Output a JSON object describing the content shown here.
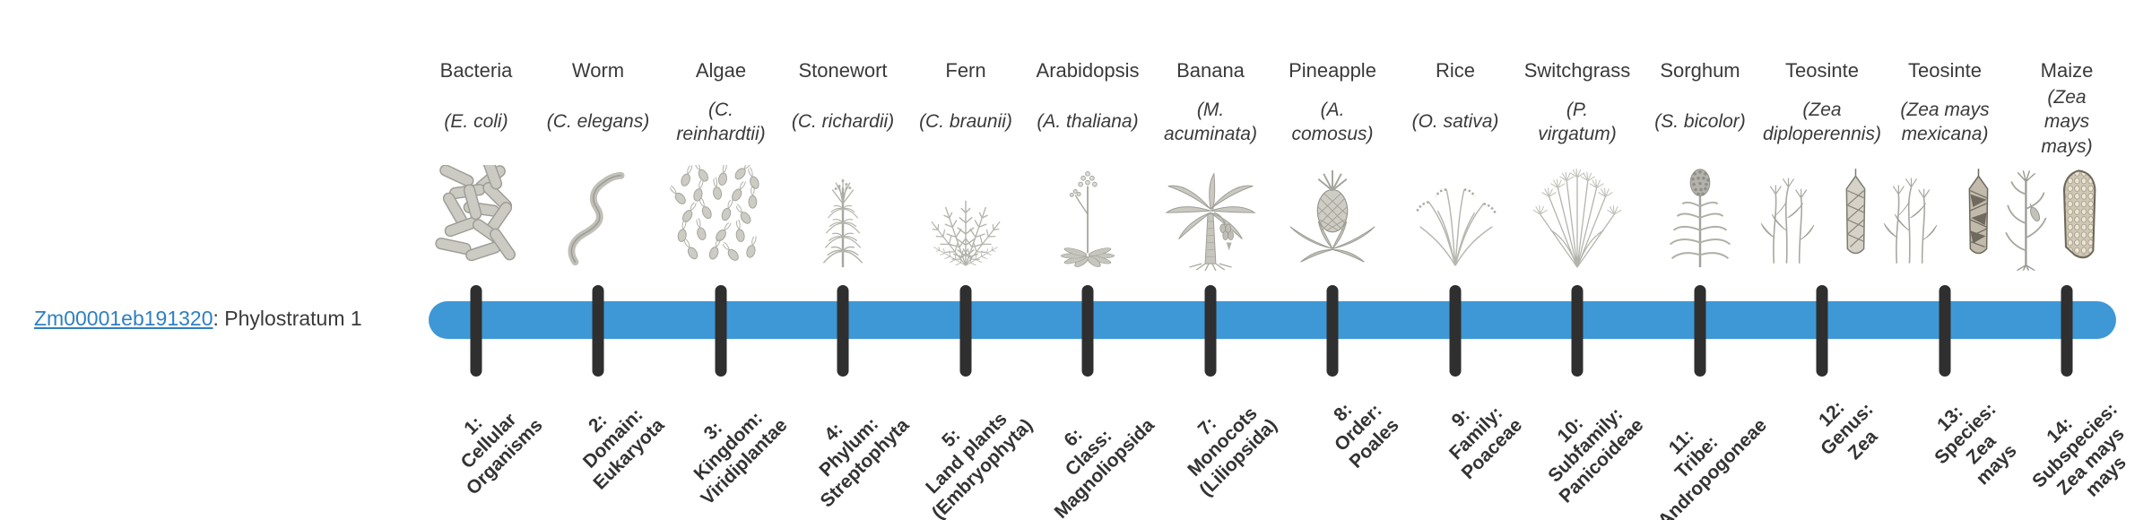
{
  "page": {
    "background": "#ffffff"
  },
  "gene": {
    "id": "Zm00001eb191320",
    "stratum_text": ": Phylostratum 1",
    "link_color": "#2f7fc1"
  },
  "timeline": {
    "bar_color": "#3e98d5",
    "tick_color": "#2f2f2f",
    "ink_color": "#3a3a3a"
  },
  "chart_data": {
    "type": "table",
    "title": "Zm00001eb191320: Phylostratum 1",
    "legend_position": "none",
    "axis": "phylostrata 1-14 left-to-right on a horizontal timeline bar",
    "strata": [
      {
        "number": 1,
        "rank": "Cellular Organisms",
        "taxon": "Cellular Organisms",
        "organism": "Bacteria",
        "species": "E. coli"
      },
      {
        "number": 2,
        "rank": "Domain",
        "taxon": "Eukaryota",
        "organism": "Worm",
        "species": "C. elegans"
      },
      {
        "number": 3,
        "rank": "Kingdom",
        "taxon": "Viridiplantae",
        "organism": "Algae",
        "species": "C. reinhardtii"
      },
      {
        "number": 4,
        "rank": "Phylum",
        "taxon": "Streptophyta",
        "organism": "Stonewort",
        "species": "C. richardii"
      },
      {
        "number": 5,
        "rank": "Land plants",
        "taxon": "Embryophyta",
        "organism": "Fern",
        "species": "C. braunii"
      },
      {
        "number": 6,
        "rank": "Class",
        "taxon": "Magnoliopsida",
        "organism": "Arabidopsis",
        "species": "A. thaliana"
      },
      {
        "number": 7,
        "rank": "Monocots",
        "taxon": "Liliopsida",
        "organism": "Banana",
        "species": "M. acuminata"
      },
      {
        "number": 8,
        "rank": "Order",
        "taxon": "Poales",
        "organism": "Pineapple",
        "species": "A. comosus"
      },
      {
        "number": 9,
        "rank": "Family",
        "taxon": "Poaceae",
        "organism": "Rice",
        "species": "O. sativa"
      },
      {
        "number": 10,
        "rank": "Subfamily",
        "taxon": "Panicoideae",
        "organism": "Switchgrass",
        "species": "P. virgatum"
      },
      {
        "number": 11,
        "rank": "Tribe",
        "taxon": "Andropogoneae",
        "organism": "Sorghum",
        "species": "S. bicolor"
      },
      {
        "number": 12,
        "rank": "Genus",
        "taxon": "Zea",
        "organism": "Teosinte",
        "species": "Zea diploperennis"
      },
      {
        "number": 13,
        "rank": "Species",
        "taxon": "Zea mays",
        "organism": "Teosinte",
        "species": "Zea mays mexicana"
      },
      {
        "number": 14,
        "rank": "Subspecies",
        "taxon": "Zea mays mays",
        "organism": "Maize",
        "species": "Zea mays mays"
      }
    ]
  },
  "organisms": [
    {
      "common": "Bacteria",
      "scientific": "(E. coli)",
      "icon": "bacteria-icon",
      "stratum": "1:\nCellular\nOrganisms"
    },
    {
      "common": "Worm",
      "scientific": "(C. elegans)",
      "icon": "worm-icon",
      "stratum": "2:\nDomain:\nEukaryota"
    },
    {
      "common": "Algae",
      "scientific": "(C.\nreinhardtii)",
      "icon": "algae-icon",
      "stratum": "3:\nKingdom:\nViridiplantae"
    },
    {
      "common": "Stonewort",
      "scientific": "(C. richardii)",
      "icon": "stonewort-icon",
      "stratum": "4:\nPhylum:\nStreptophyta"
    },
    {
      "common": "Fern",
      "scientific": "(C. braunii)",
      "icon": "fern-icon",
      "stratum": "5:\nLand plants\n(Embryophyta)"
    },
    {
      "common": "Arabidopsis",
      "scientific": "(A. thaliana)",
      "icon": "arabidopsis-icon",
      "stratum": "6:\nClass:\nMagnoliopsida"
    },
    {
      "common": "Banana",
      "scientific": "(M.\nacuminata)",
      "icon": "banana-icon",
      "stratum": "7:\nMonocots\n(Liliopsida)"
    },
    {
      "common": "Pineapple",
      "scientific": "(A.\ncomosus)",
      "icon": "pineapple-icon",
      "stratum": "8:\nOrder:\nPoales"
    },
    {
      "common": "Rice",
      "scientific": "(O. sativa)",
      "icon": "rice-icon",
      "stratum": "9:\nFamily:\nPoaceae"
    },
    {
      "common": "Switchgrass",
      "scientific": "(P.\nvirgatum)",
      "icon": "switchgrass-icon",
      "stratum": "10:\nSubfamily:\nPanicoideae"
    },
    {
      "common": "Sorghum",
      "scientific": "(S. bicolor)",
      "icon": "sorghum-icon",
      "stratum": "11:\nTribe:\nAndropogoneae"
    },
    {
      "common": "Teosinte",
      "scientific": "(Zea\ndiploperennis)",
      "icon": "teosinte-diploperennis-icon",
      "stratum": "12:\nGenus:\nZea"
    },
    {
      "common": "Teosinte",
      "scientific": "(Zea mays\nmexicana)",
      "icon": "teosinte-mexicana-icon",
      "stratum": "13:\nSpecies:\nZea\nmays"
    },
    {
      "common": "Maize",
      "scientific": "(Zea mays\nmays)",
      "icon": "maize-icon",
      "stratum": "14:\nSubspecies:\nZea mays\nmays"
    }
  ]
}
